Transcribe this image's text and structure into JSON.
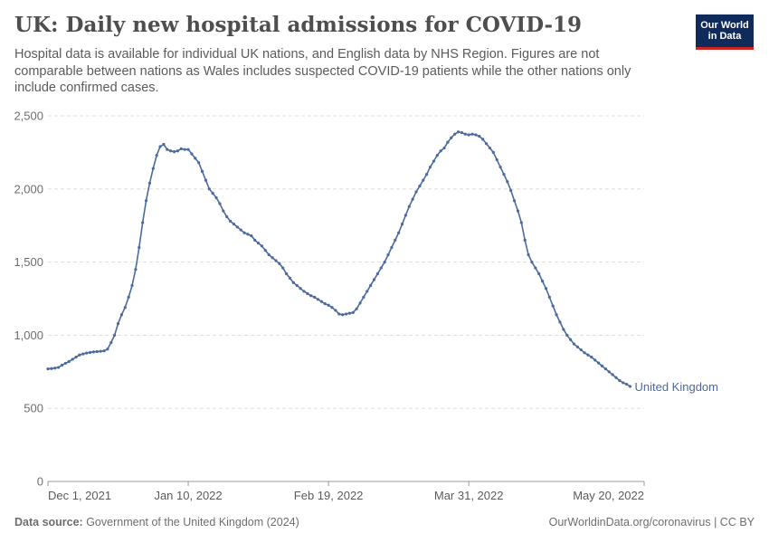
{
  "header": {
    "title": "UK: Daily new hospital admissions for COVID-19",
    "subtitle": "Hospital data is available for individual UK nations, and English data by NHS Region. Figures are not comparable between nations as Wales includes suspected COVID-19 patients while the other nations only include confirmed cases.",
    "logo_line1": "Our World",
    "logo_line2": "in Data"
  },
  "footer": {
    "source_label": "Data source:",
    "source_text": " Government of the United Kingdom (2024)",
    "right_text": "OurWorldinData.org/coronavirus | CC BY"
  },
  "colors": {
    "series": "#4c6a9c",
    "grid": "#dddddd",
    "axis": "#999999",
    "logo_bg": "#0f2b5b",
    "logo_accent": "#ce261e"
  },
  "chart_data": {
    "type": "line",
    "title": "UK: Daily new hospital admissions for COVID-19",
    "xlabel": "",
    "ylabel": "",
    "ylim": [
      0,
      2500
    ],
    "y_ticks": [
      0,
      500,
      1000,
      1500,
      2000,
      2500
    ],
    "y_tick_labels": [
      "0",
      "500",
      "1,000",
      "1,500",
      "2,000",
      "2,500"
    ],
    "x_ticks": [
      "2021-12-01",
      "2022-01-10",
      "2022-02-19",
      "2022-03-31",
      "2022-05-20"
    ],
    "x_tick_labels": [
      "Dec 1, 2021",
      "Jan 10, 2022",
      "Feb 19, 2022",
      "Mar 31, 2022",
      "May 20, 2022"
    ],
    "xlim": [
      "2021-12-01",
      "2022-05-20"
    ],
    "grid": true,
    "series": [
      {
        "name": "United Kingdom",
        "start_date": "2021-12-01",
        "values": [
          770,
          772,
          775,
          780,
          795,
          808,
          820,
          835,
          850,
          865,
          872,
          878,
          882,
          886,
          888,
          890,
          893,
          905,
          950,
          1000,
          1080,
          1140,
          1190,
          1260,
          1340,
          1450,
          1600,
          1770,
          1920,
          2040,
          2140,
          2230,
          2290,
          2305,
          2270,
          2260,
          2255,
          2260,
          2275,
          2270,
          2270,
          2240,
          2210,
          2180,
          2120,
          2060,
          2000,
          1970,
          1940,
          1900,
          1850,
          1810,
          1780,
          1760,
          1740,
          1720,
          1700,
          1690,
          1680,
          1650,
          1630,
          1610,
          1580,
          1550,
          1530,
          1510,
          1490,
          1460,
          1420,
          1390,
          1360,
          1340,
          1320,
          1300,
          1285,
          1270,
          1260,
          1245,
          1230,
          1215,
          1205,
          1190,
          1170,
          1145,
          1140,
          1145,
          1150,
          1155,
          1180,
          1220,
          1260,
          1300,
          1340,
          1380,
          1420,
          1460,
          1500,
          1550,
          1600,
          1650,
          1700,
          1760,
          1820,
          1880,
          1930,
          1980,
          2020,
          2060,
          2100,
          2150,
          2190,
          2230,
          2260,
          2280,
          2320,
          2350,
          2375,
          2390,
          2385,
          2375,
          2370,
          2375,
          2370,
          2360,
          2340,
          2310,
          2280,
          2250,
          2200,
          2150,
          2100,
          2050,
          1990,
          1920,
          1850,
          1770,
          1650,
          1550,
          1500,
          1460,
          1420,
          1370,
          1320,
          1260,
          1200,
          1140,
          1090,
          1040,
          1000,
          970,
          940,
          920,
          900,
          880,
          865,
          850,
          830,
          810,
          790,
          770,
          750,
          730,
          710,
          690,
          675,
          665,
          650
        ]
      }
    ]
  }
}
